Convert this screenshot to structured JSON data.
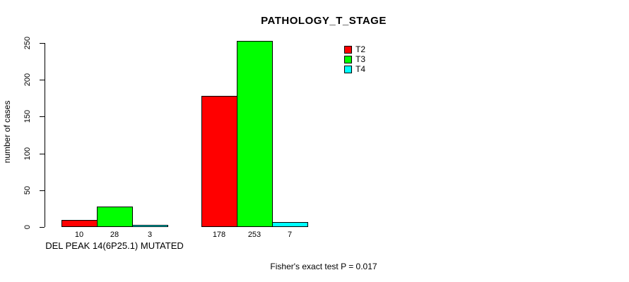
{
  "title": "PATHOLOGY_T_STAGE",
  "subtitle": "Fisher's exact test P = 0.017",
  "ylabel": "number of cases",
  "chart_data": {
    "type": "bar",
    "grouped": true,
    "categories": [
      "DEL PEAK 14(6P25.1) MUTATED",
      ""
    ],
    "series": [
      {
        "name": "T2",
        "color": "#ff0000",
        "values": [
          10,
          178
        ]
      },
      {
        "name": "T3",
        "color": "#00ff00",
        "values": [
          28,
          253
        ]
      },
      {
        "name": "T4",
        "color": "#00ffff",
        "values": [
          3,
          7
        ]
      }
    ],
    "ylim": [
      0,
      250
    ],
    "yticks": [
      0,
      50,
      100,
      150,
      200,
      250
    ],
    "bar_value_labels": [
      [
        "10",
        "28",
        "3"
      ],
      [
        "178",
        "253",
        "7"
      ]
    ],
    "legend_position": "top-right",
    "grid": false,
    "bar_border_color": "#000000",
    "background_color": "#ffffff"
  }
}
